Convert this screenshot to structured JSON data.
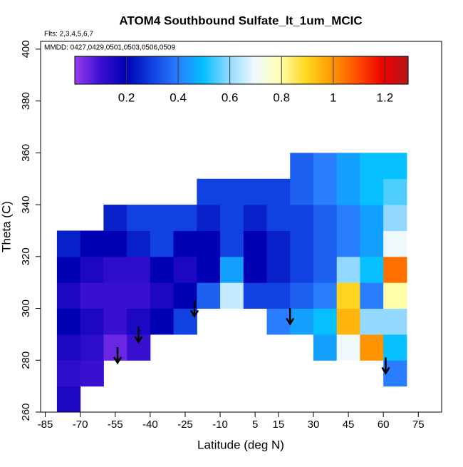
{
  "chart_data": {
    "type": "heatmap",
    "title": "ATOM4 Southbound Sulfate_lt_1um_MCIC",
    "subtitle": "Flts: 2,3,4,5,6,7",
    "annotation": "MMDD: 0427,0429,0501,0503,0506,0509",
    "x_label": "Latitude (deg N)",
    "y_label": "Theta (C)",
    "xlim": [
      -87,
      85
    ],
    "ylim": [
      260,
      403
    ],
    "xticks": [
      -85,
      -70,
      -55,
      -40,
      -25,
      -10,
      5,
      15,
      30,
      45,
      60,
      75
    ],
    "yticks": [
      260,
      280,
      300,
      320,
      340,
      360,
      380,
      400
    ],
    "x": [
      -75,
      -65,
      -55,
      -45,
      -35,
      -25,
      -15,
      -5,
      5,
      15,
      25,
      35,
      45,
      55,
      65
    ],
    "y": [
      265,
      275,
      285,
      295,
      305,
      315,
      325,
      335,
      345,
      355
    ],
    "z": [
      [
        0.15,
        null,
        null,
        null,
        null,
        null,
        null,
        null,
        null,
        null,
        null,
        null,
        null,
        null,
        null
      ],
      [
        0.12,
        0.1,
        null,
        null,
        null,
        null,
        null,
        null,
        null,
        null,
        null,
        null,
        null,
        null,
        0.4
      ],
      [
        0.15,
        0.12,
        0.05,
        0.1,
        null,
        null,
        null,
        null,
        null,
        null,
        null,
        0.45,
        0.7,
        1.0,
        0.5
      ],
      [
        0.2,
        0.15,
        0.1,
        0.15,
        0.2,
        0.3,
        null,
        null,
        null,
        0.4,
        0.45,
        0.5,
        0.95,
        0.6,
        0.6
      ],
      [
        0.15,
        0.1,
        0.1,
        0.1,
        0.15,
        0.2,
        0.35,
        0.65,
        0.3,
        0.3,
        0.35,
        0.4,
        0.9,
        0.4,
        0.8
      ],
      [
        0.2,
        0.15,
        0.12,
        0.12,
        0.2,
        0.15,
        0.2,
        0.45,
        0.2,
        0.25,
        0.3,
        0.35,
        0.6,
        0.5,
        1.05
      ],
      [
        0.25,
        0.2,
        0.2,
        0.25,
        0.3,
        0.2,
        0.2,
        0.3,
        0.2,
        0.25,
        0.3,
        0.35,
        0.4,
        0.45,
        0.7
      ],
      [
        null,
        null,
        0.25,
        0.3,
        0.3,
        0.3,
        0.25,
        0.3,
        0.25,
        0.3,
        0.3,
        0.35,
        0.4,
        0.45,
        0.6
      ],
      [
        null,
        null,
        null,
        null,
        null,
        null,
        0.3,
        0.3,
        0.3,
        0.3,
        0.35,
        0.4,
        0.45,
        0.5,
        0.55
      ],
      [
        null,
        null,
        null,
        null,
        null,
        null,
        null,
        null,
        null,
        null,
        0.35,
        0.4,
        0.45,
        0.5,
        0.5
      ]
    ],
    "arrows": {
      "x": [
        -54,
        -45,
        -21,
        20,
        61
      ],
      "y": [
        279,
        287,
        297,
        294,
        275
      ]
    },
    "colorbar": {
      "lim": [
        0,
        1.29
      ],
      "ticks": [
        0.2,
        0.4,
        0.6,
        0.8,
        1.0,
        1.2
      ],
      "colors": [
        "#9a3cf0",
        "#3a10d0",
        "#0000b4",
        "#1040e0",
        "#2a7cff",
        "#00bfff",
        "#8fd8ff",
        "#eef8ff",
        "#ffffb0",
        "#ffd820",
        "#ff9a00",
        "#ff5000",
        "#f00000",
        "#b01818"
      ]
    }
  }
}
